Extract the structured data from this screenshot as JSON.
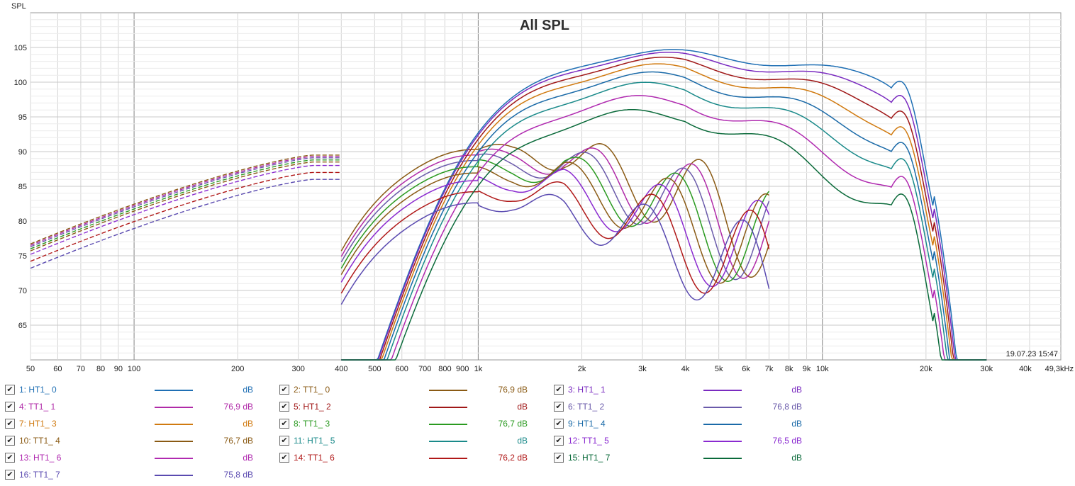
{
  "chart_data": {
    "type": "line",
    "title": "All SPL",
    "ylabel": "SPL",
    "xlabel": "",
    "x_scale": "log",
    "xlim": [
      50,
      49300
    ],
    "ylim": [
      60,
      110
    ],
    "grid": true,
    "timestamp": "19.07.23 15:47",
    "x_ticks": [
      {
        "v": 50,
        "label": "50"
      },
      {
        "v": 60,
        "label": "60"
      },
      {
        "v": 70,
        "label": "70"
      },
      {
        "v": 80,
        "label": "80"
      },
      {
        "v": 90,
        "label": "90"
      },
      {
        "v": 100,
        "label": "100"
      },
      {
        "v": 200,
        "label": "200"
      },
      {
        "v": 300,
        "label": "300"
      },
      {
        "v": 400,
        "label": "400"
      },
      {
        "v": 500,
        "label": "500"
      },
      {
        "v": 600,
        "label": "600"
      },
      {
        "v": 700,
        "label": "700"
      },
      {
        "v": 800,
        "label": "800"
      },
      {
        "v": 900,
        "label": "900"
      },
      {
        "v": 1000,
        "label": "1k"
      },
      {
        "v": 2000,
        "label": "2k"
      },
      {
        "v": 3000,
        "label": "3k"
      },
      {
        "v": 4000,
        "label": "4k"
      },
      {
        "v": 5000,
        "label": "5k"
      },
      {
        "v": 6000,
        "label": "6k"
      },
      {
        "v": 7000,
        "label": "7k"
      },
      {
        "v": 8000,
        "label": "8k"
      },
      {
        "v": 9000,
        "label": "9k"
      },
      {
        "v": 10000,
        "label": "10k"
      },
      {
        "v": 20000,
        "label": "20k"
      },
      {
        "v": 30000,
        "label": "30k"
      },
      {
        "v": 40000,
        "label": "40k"
      },
      {
        "v": 49300,
        "label": "49,3kHz"
      }
    ],
    "y_ticks": [
      {
        "v": 65,
        "label": "65"
      },
      {
        "v": 70,
        "label": "70"
      },
      {
        "v": 75,
        "label": "75"
      },
      {
        "v": 80,
        "label": "80"
      },
      {
        "v": 85,
        "label": "85"
      },
      {
        "v": 90,
        "label": "90"
      },
      {
        "v": 95,
        "label": "95"
      },
      {
        "v": 100,
        "label": "100"
      },
      {
        "v": 105,
        "label": "105"
      }
    ],
    "series": [
      {
        "name": "1: HT1_ 0",
        "color": "#1f6fb4",
        "kind": "ht",
        "level": 101.2,
        "value": "dB"
      },
      {
        "name": "2: TT1_ 0",
        "color": "#8a5a14",
        "kind": "tt",
        "level": 89.5,
        "value": "76,9 dB"
      },
      {
        "name": "3: HT1_ 1",
        "color": "#7a2bc0",
        "kind": "ht",
        "level": 100.9,
        "value": "dB"
      },
      {
        "name": "4: TT1_ 1",
        "color": "#b02aa8",
        "kind": "tt",
        "level": 89.3,
        "value": "76,9 dB"
      },
      {
        "name": "5: HT1_ 2",
        "color": "#a01818",
        "kind": "ht",
        "level": 100.3,
        "value": "dB"
      },
      {
        "name": "6: TT1_ 2",
        "color": "#6a5aaa",
        "kind": "tt",
        "level": 89.1,
        "value": "76,8 dB"
      },
      {
        "name": "7: HT1_ 3",
        "color": "#d07a10",
        "kind": "ht",
        "level": 99.5,
        "value": "dB"
      },
      {
        "name": "8: TT1_ 3",
        "color": "#2a9a20",
        "kind": "tt",
        "level": 88.8,
        "value": "76,7 dB"
      },
      {
        "name": "9: HT1_ 4",
        "color": "#1a6aa8",
        "kind": "ht",
        "level": 98.5,
        "value": "dB"
      },
      {
        "name": "10: TT1_ 4",
        "color": "#8a5a14",
        "kind": "tt",
        "level": 88.5,
        "value": "76,7 dB"
      },
      {
        "name": "11: HT1_ 5",
        "color": "#1a8a8a",
        "kind": "ht",
        "level": 97.2,
        "value": "dB"
      },
      {
        "name": "12: TT1_ 5",
        "color": "#8a2ad0",
        "kind": "tt",
        "level": 88.0,
        "value": "76,5 dB"
      },
      {
        "name": "13: HT1_ 6",
        "color": "#b02ab0",
        "kind": "ht",
        "level": 95.5,
        "value": "dB"
      },
      {
        "name": "14: TT1_ 6",
        "color": "#b01818",
        "kind": "tt",
        "level": 87.0,
        "value": "76,2 dB"
      },
      {
        "name": "15: HT1_ 7",
        "color": "#0a6a3a",
        "kind": "ht",
        "level": 93.7,
        "value": "dB"
      },
      {
        "name": "16: TT1_ 7",
        "color": "#5a4ab0",
        "kind": "tt",
        "level": 86.0,
        "value": "75,8 dB"
      }
    ]
  }
}
